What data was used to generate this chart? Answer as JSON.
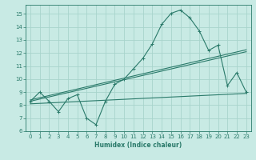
{
  "xlabel": "Humidex (Indice chaleur)",
  "ylabel": "",
  "bg_color": "#c8eae4",
  "grid_color": "#a8d4cc",
  "line_color": "#2a7a6a",
  "xlim": [
    -0.5,
    23.5
  ],
  "ylim": [
    6,
    15.7
  ],
  "xticks": [
    0,
    1,
    2,
    3,
    4,
    5,
    6,
    7,
    8,
    9,
    10,
    11,
    12,
    13,
    14,
    15,
    16,
    17,
    18,
    19,
    20,
    21,
    22,
    23
  ],
  "yticks": [
    6,
    7,
    8,
    9,
    10,
    11,
    12,
    13,
    14,
    15
  ],
  "line1_x": [
    0,
    1,
    2,
    3,
    4,
    5,
    6,
    7,
    8,
    9,
    10,
    11,
    12,
    13,
    14,
    15,
    16,
    17,
    18,
    19,
    20,
    21,
    22,
    23
  ],
  "line1_y": [
    8.3,
    9.0,
    8.3,
    7.5,
    8.5,
    8.8,
    7.0,
    6.5,
    8.3,
    9.6,
    10.0,
    10.8,
    11.6,
    12.7,
    14.2,
    15.05,
    15.3,
    14.7,
    13.7,
    12.2,
    12.6,
    9.5,
    10.5,
    9.0
  ],
  "line2_x": [
    0,
    23
  ],
  "line2_y": [
    8.4,
    12.25
  ],
  "line3_x": [
    0,
    23
  ],
  "line3_y": [
    8.3,
    12.1
  ],
  "line4_x": [
    0,
    23
  ],
  "line4_y": [
    8.1,
    8.9
  ]
}
